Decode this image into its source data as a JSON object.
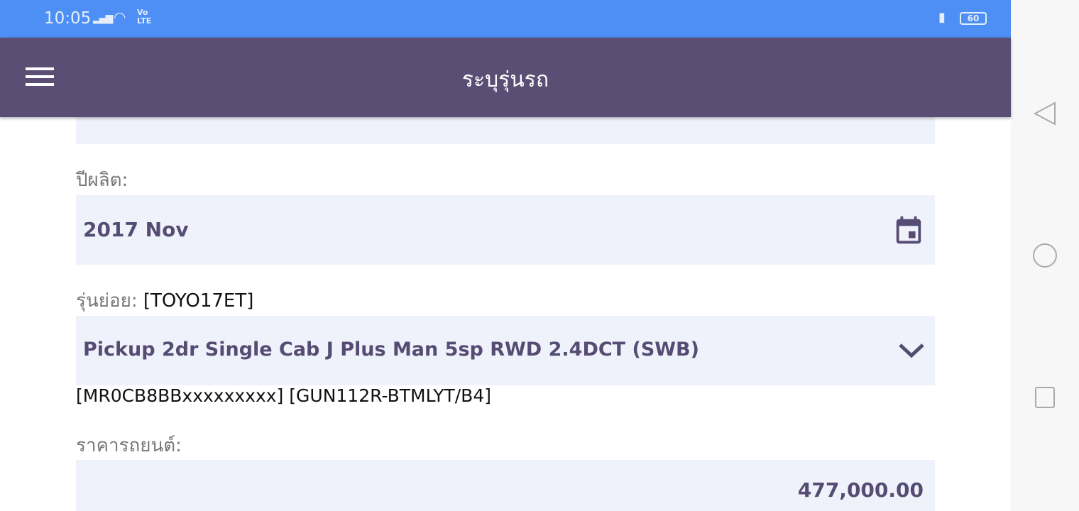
{
  "status_bar": {
    "time": "10:05",
    "battery": "60"
  },
  "app_bar": {
    "title": "ระบุรุ่นรถ"
  },
  "form": {
    "year_label": "ปีผลิต:",
    "year_value": "2017 Nov",
    "submodel_label": "รุ่นย่อย:",
    "submodel_code": "[TOYO17ET]",
    "submodel_value": "Pickup 2dr Single Cab J Plus Man 5sp RWD 2.4DCT (SWB)",
    "vin_info": "[MR0CB8BBxxxxxxxxx] [GUN112R-BTMLYT/B4]",
    "price_label": "ราคารถยนต์:",
    "price_value": "477,000.00"
  },
  "colors": {
    "status": "#4d8ff5",
    "appbar": "#5a4e74",
    "field_bg": "#eff2fb",
    "accent": "#564c73"
  }
}
